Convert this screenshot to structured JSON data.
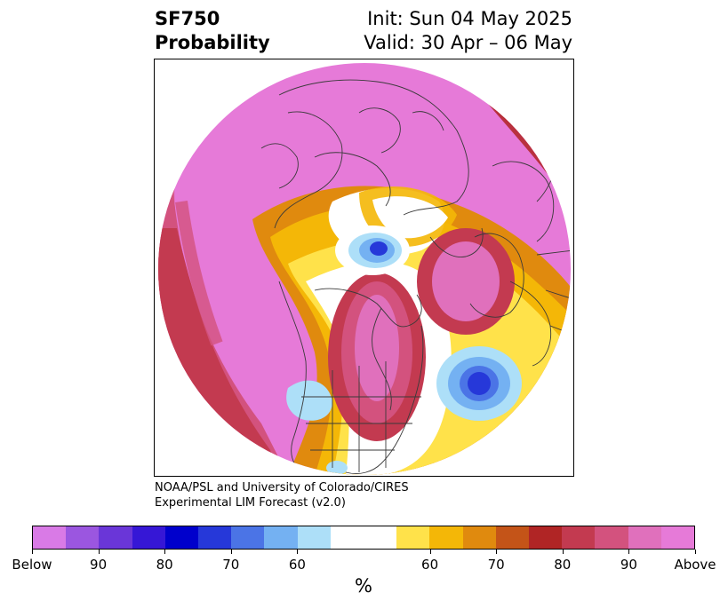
{
  "title": {
    "left_line1": "SF750",
    "left_line2": "Probability",
    "right_line1": "Init: Sun 04 May 2025",
    "right_line2": "Valid: 30 Apr – 06 May"
  },
  "credit": {
    "line1": "NOAA/PSL and University of Colorado/CIRES",
    "line2": "Experimental LIM Forecast (v2.0)"
  },
  "colorbar": {
    "unit": "%",
    "colors": [
      "#d97ae6",
      "#9b56e0",
      "#6a36d8",
      "#3617d6",
      "#0000cc",
      "#2638d9",
      "#4b74e6",
      "#74b1f2",
      "#addff8",
      "#ffffff",
      "#ffffff",
      "#ffe24a",
      "#f4b707",
      "#e08a0e",
      "#c45418",
      "#b02525",
      "#c33a50",
      "#d3527e",
      "#e070bc",
      "#e67ad8"
    ],
    "tick_labels": [
      "Below",
      "90",
      "80",
      "70",
      "60",
      "60",
      "70",
      "80",
      "90",
      "Above"
    ]
  },
  "map": {
    "projection": "north-polar-stereographic",
    "legend_colors": {
      "above_high": "#e67ad8",
      "above_mid": "#c33a50",
      "above_low": "#f4b707",
      "below_low": "#addff8",
      "below_mid": "#4b74e6",
      "below_high": "#2638d9"
    }
  }
}
